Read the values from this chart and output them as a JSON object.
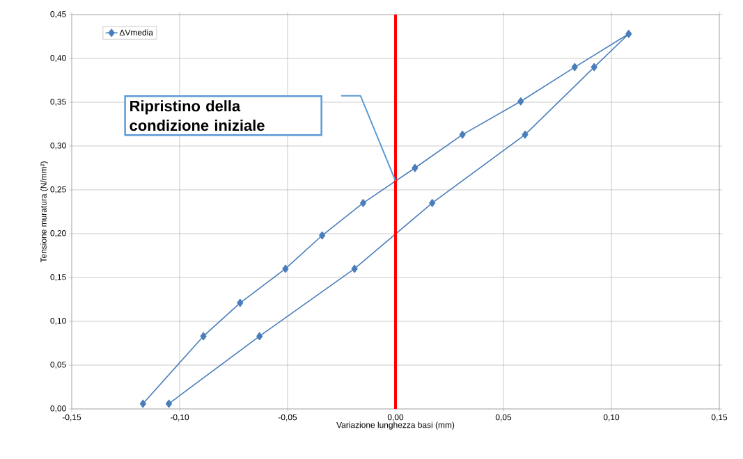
{
  "chart_data": {
    "type": "line",
    "xlabel": "Variazione lunghezza basi (mm)",
    "ylabel": "Tensione muratura (N/mm²)",
    "x": [
      -0.105,
      -0.063,
      -0.019,
      0.017,
      0.06,
      0.092,
      0.108,
      0.083,
      0.058,
      0.031,
      0.009,
      -0.015,
      -0.034,
      -0.051,
      -0.072,
      -0.089,
      -0.117
    ],
    "series": [
      {
        "name": "ΔVmedia",
        "color": "#4a7ebb",
        "values": [
          0.006,
          0.083,
          0.16,
          0.235,
          0.313,
          0.39,
          0.428,
          0.39,
          0.351,
          0.313,
          0.275,
          0.235,
          0.198,
          0.16,
          0.121,
          0.083,
          0.006
        ]
      }
    ],
    "xlim": [
      -0.15,
      0.15
    ],
    "xticks": [
      {
        "value": -0.15,
        "label": "-0,15"
      },
      {
        "value": -0.1,
        "label": "-0,10"
      },
      {
        "value": -0.05,
        "label": "-0,05"
      },
      {
        "value": 0,
        "label": "0,00"
      },
      {
        "value": 0.05,
        "label": "0,05"
      },
      {
        "value": 0.1,
        "label": "0,10"
      },
      {
        "value": 0.15,
        "label": "0,15"
      }
    ],
    "ylim": [
      0,
      0.45
    ],
    "yticks": [
      {
        "value": 0,
        "label": "0,00"
      },
      {
        "value": 0.05,
        "label": "0,05"
      },
      {
        "value": 0.1,
        "label": "0,10"
      },
      {
        "value": 0.15,
        "label": "0,15"
      },
      {
        "value": 0.2,
        "label": "0,20"
      },
      {
        "value": 0.25,
        "label": "0,25"
      },
      {
        "value": 0.3,
        "label": "0,30"
      },
      {
        "value": 0.35,
        "label": "0,35"
      },
      {
        "value": 0.4,
        "label": "0,40"
      },
      {
        "value": 0.45,
        "label": "0,45"
      }
    ],
    "ref_lines": [
      {
        "axis": "x",
        "value": 0,
        "color": "#ff0000"
      }
    ],
    "annotations": [
      "Ripristino della condizione iniziale"
    ],
    "grid": true,
    "legend": "top left",
    "marker": "diamond",
    "line_style": "solid"
  }
}
